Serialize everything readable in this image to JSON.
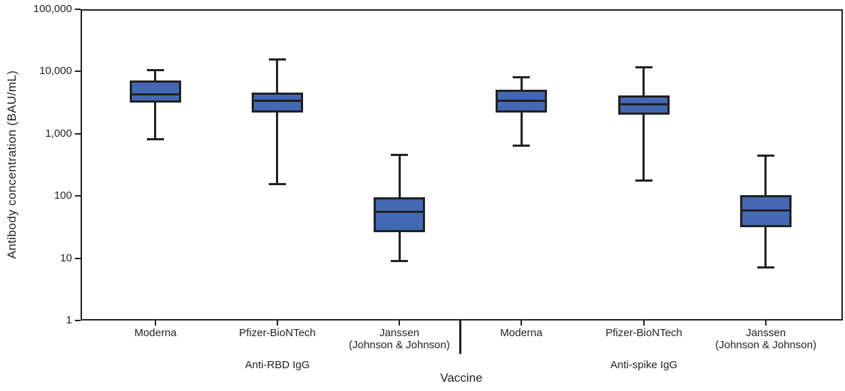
{
  "chart_data": {
    "type": "boxplot",
    "title": "",
    "ylabel": "Antibody concentration (BAU/mL)",
    "xlabel": "Vaccine",
    "yscale": "log",
    "ylim": [
      1,
      100000
    ],
    "ytick_values": [
      100000,
      10000,
      1000,
      100,
      10,
      1
    ],
    "ytick_labels": [
      "100,000",
      "10,000",
      "1,000",
      "100",
      "10",
      "1"
    ],
    "grid": false,
    "legend": false,
    "colors": {
      "box_fill": "#4269b2",
      "line": "#231f20",
      "background": "#ffffff"
    },
    "groups": [
      {
        "label": "Anti-RBD IgG",
        "boxes": [
          {
            "category": "Moderna",
            "whisker_low": 800,
            "q1": 3200,
            "median": 4300,
            "q3": 7200,
            "whisker_high": 10700
          },
          {
            "category": "Pfizer-BioNTech",
            "whisker_low": 155,
            "q1": 2200,
            "median": 3400,
            "q3": 4600,
            "whisker_high": 16000
          },
          {
            "category": "Janssen\n(Johnson & Johnson)",
            "whisker_low": 9,
            "q1": 26,
            "median": 55,
            "q3": 95,
            "whisker_high": 460
          }
        ]
      },
      {
        "label": "Anti-spike IgG",
        "boxes": [
          {
            "category": "Moderna",
            "whisker_low": 640,
            "q1": 2200,
            "median": 3400,
            "q3": 5100,
            "whisker_high": 8100
          },
          {
            "category": "Pfizer-BioNTech",
            "whisker_low": 175,
            "q1": 2000,
            "median": 3000,
            "q3": 4100,
            "whisker_high": 11700
          },
          {
            "category": "Janssen\n(Johnson & Johnson)",
            "whisker_low": 7,
            "q1": 31,
            "median": 58,
            "q3": 102,
            "whisker_high": 455
          }
        ]
      }
    ]
  }
}
